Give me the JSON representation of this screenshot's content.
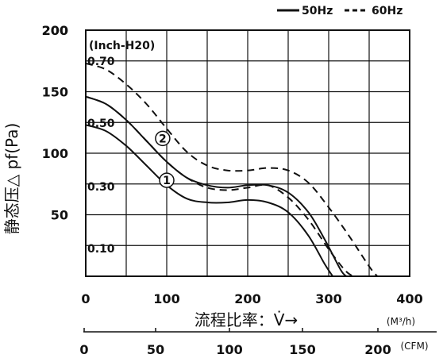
{
  "chart_data": {
    "type": "line",
    "title": "",
    "xlabel": "流程比率：V̇→",
    "ylabel": "静态压△ pf(Pa)",
    "x_unit": "(M³/h)",
    "x2_unit": "(CFM)",
    "inner_unit": "(Inch-H20)",
    "xlim": [
      0,
      400
    ],
    "ylim": [
      0,
      200
    ],
    "x_ticks": [
      0,
      100,
      200,
      300,
      400
    ],
    "y_ticks": [
      50,
      100,
      150,
      200
    ],
    "x2_ticks": [
      0,
      50,
      100,
      150,
      200
    ],
    "inch_ticks": [
      "0.10",
      "0.30",
      "0.50",
      "0.70"
    ],
    "grid": true,
    "legend_position": "top-right",
    "legend": [
      {
        "label": "50Hz",
        "style": "solid"
      },
      {
        "label": "60Hz",
        "style": "dashed"
      }
    ],
    "curve_labels": [
      "1",
      "2"
    ],
    "series": [
      {
        "name": "50Hz",
        "curve": "1",
        "x": [
          0,
          25,
          50,
          75,
          100,
          125,
          150,
          175,
          200,
          225,
          250,
          275,
          295,
          305
        ],
        "y": [
          123,
          118,
          106,
          90,
          74,
          63,
          60,
          60,
          62,
          60,
          52,
          33,
          10,
          0
        ]
      },
      {
        "name": "60Hz",
        "curve": "1",
        "x": [
          0,
          25,
          50,
          75,
          100,
          125,
          150,
          175,
          200,
          225,
          250,
          275,
          300,
          320,
          330
        ],
        "y": [
          146,
          140,
          127,
          110,
          93,
          80,
          72,
          70,
          72,
          74,
          64,
          46,
          22,
          5,
          0
        ]
      },
      {
        "name": "50Hz",
        "curve": "2",
        "x": [
          0,
          25,
          50,
          75,
          100,
          125,
          150,
          175,
          200,
          225,
          250,
          275,
          295,
          315,
          322
        ],
        "y": [
          146,
          140,
          127,
          110,
          93,
          80,
          74,
          72,
          74,
          74,
          68,
          52,
          30,
          5,
          0
        ]
      },
      {
        "name": "60Hz",
        "curve": "2",
        "x": [
          0,
          25,
          50,
          75,
          100,
          125,
          150,
          175,
          200,
          225,
          250,
          275,
          300,
          325,
          350,
          360
        ],
        "y": [
          173,
          168,
          156,
          140,
          120,
          101,
          90,
          86,
          86,
          88,
          86,
          76,
          56,
          33,
          8,
          0
        ]
      }
    ]
  }
}
